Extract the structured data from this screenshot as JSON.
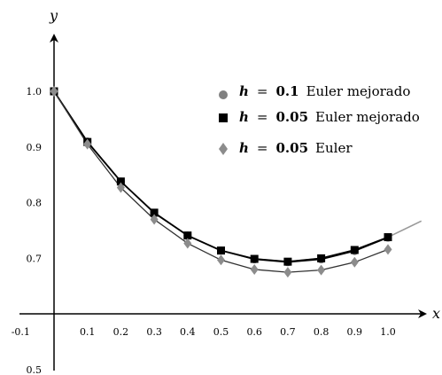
{
  "chart_data": {
    "type": "line",
    "xlabel": "x",
    "ylabel": "y",
    "xlim": [
      -0.1,
      1.1
    ],
    "ylim": [
      0.5,
      1.05
    ],
    "x_ticks": [
      {
        "value": -0.1,
        "label": "-0.1"
      },
      {
        "value": 0.1,
        "label": "0.1"
      },
      {
        "value": 0.2,
        "label": "0.2"
      },
      {
        "value": 0.3,
        "label": "0.3"
      },
      {
        "value": 0.4,
        "label": "0.4"
      },
      {
        "value": 0.5,
        "label": "0.5"
      },
      {
        "value": 0.6,
        "label": "0.6"
      },
      {
        "value": 0.7,
        "label": "0.7"
      },
      {
        "value": 0.8,
        "label": "0.8"
      },
      {
        "value": 0.9,
        "label": "0.9"
      },
      {
        "value": 1.0,
        "label": "1.0"
      }
    ],
    "y_ticks": [
      {
        "value": 1.0,
        "label": "1.0"
      },
      {
        "value": 0.9,
        "label": "0.9"
      },
      {
        "value": 0.8,
        "label": "0.8"
      },
      {
        "value": 0.7,
        "label": "0.7"
      },
      {
        "value": 0.5,
        "label": "0.5"
      }
    ],
    "grid": false,
    "legend_position": "top-right",
    "series": [
      {
        "symbol": "h",
        "equals": "=",
        "step": "0.1",
        "method": "Euler mejorado",
        "marker": "circle",
        "color": "#808080",
        "x": [
          0,
          0.1,
          0.2,
          0.3,
          0.4,
          0.5,
          0.6,
          0.7,
          0.8,
          0.9,
          1.0
        ],
        "y": [
          1.0,
          0.91,
          0.838,
          0.781,
          0.741,
          0.714,
          0.698,
          0.693,
          0.698,
          0.713,
          0.737
        ]
      },
      {
        "symbol": "h",
        "equals": "=",
        "step": "0.05",
        "method": "Euler mejorado",
        "marker": "square",
        "color": "#000000",
        "x": [
          0,
          0.1,
          0.2,
          0.3,
          0.4,
          0.5,
          0.6,
          0.7,
          0.8,
          0.9,
          1.0
        ],
        "y": [
          1.0,
          0.909,
          0.838,
          0.782,
          0.741,
          0.714,
          0.699,
          0.694,
          0.7,
          0.715,
          0.738
        ]
      },
      {
        "symbol": "h",
        "equals": "=",
        "step": "0.05",
        "method": "Euler",
        "marker": "diamond",
        "color": "#8c8c8c",
        "x": [
          0,
          0.1,
          0.2,
          0.3,
          0.4,
          0.5,
          0.6,
          0.7,
          0.8,
          0.9,
          1.0
        ],
        "y": [
          1.0,
          0.905,
          0.827,
          0.77,
          0.727,
          0.697,
          0.68,
          0.675,
          0.679,
          0.693,
          0.716
        ]
      }
    ],
    "exact_curve": {
      "color": "#999999",
      "x": [
        0,
        0.1,
        0.2,
        0.3,
        0.4,
        0.5,
        0.6,
        0.7,
        0.8,
        0.9,
        1.0,
        1.1
      ],
      "y": [
        1.0,
        0.909,
        0.838,
        0.782,
        0.741,
        0.714,
        0.699,
        0.694,
        0.7,
        0.715,
        0.738,
        0.767
      ]
    }
  }
}
